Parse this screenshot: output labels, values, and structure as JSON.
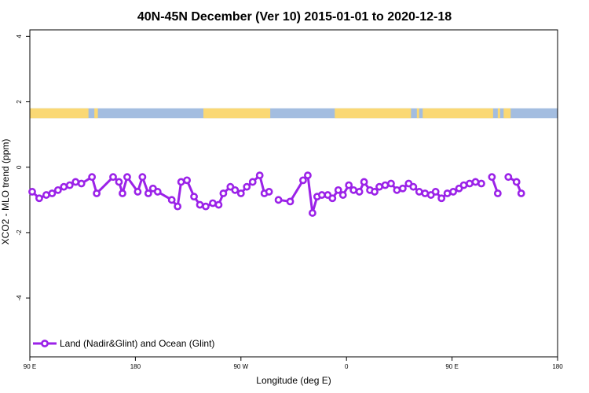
{
  "chart_data": {
    "type": "line",
    "title": "40N-45N December (Ver 10)   2015-01-01 to 2020-12-18",
    "xlabel": "Longitude (deg E)",
    "ylabel": "XCO2 - MLO trend (ppm)",
    "xlim": [
      90,
      540
    ],
    "ylim": [
      -5.8,
      4.2
    ],
    "x_ticks": [
      {
        "value": 90,
        "label": "90 E"
      },
      {
        "value": 180,
        "label": "180"
      },
      {
        "value": 270,
        "label": "90 W"
      },
      {
        "value": 360,
        "label": "0"
      },
      {
        "value": 450,
        "label": "90 E"
      },
      {
        "value": 540,
        "label": "180"
      }
    ],
    "y_ticks": [
      {
        "value": 4,
        "label": "4"
      },
      {
        "value": 2,
        "label": "2"
      },
      {
        "value": 0,
        "label": "0"
      },
      {
        "value": -2,
        "label": "-2"
      },
      {
        "value": -4,
        "label": "-4"
      }
    ],
    "land_ocean_strip": {
      "y_range": [
        1.5,
        1.8
      ],
      "land_color": "#fad874",
      "ocean_color": "#a3bde0",
      "land_segments": [
        [
          90,
          140
        ],
        [
          145,
          148
        ],
        [
          238,
          295
        ],
        [
          350,
          415
        ],
        [
          420,
          422
        ],
        [
          425,
          485
        ],
        [
          489,
          491
        ],
        [
          494,
          500
        ]
      ]
    },
    "series": [
      {
        "name": "Land (Nadir&Glint) and Ocean (Glint)",
        "color": "#9b22e8",
        "x": [
          92,
          98,
          104,
          109,
          114,
          119,
          124,
          129,
          134,
          143,
          147,
          161,
          166,
          169,
          173,
          182,
          186,
          191,
          195,
          199,
          211,
          216,
          219,
          224,
          230,
          235,
          240,
          246,
          251,
          255,
          261,
          265,
          270,
          275,
          280,
          286,
          290,
          294,
          298,
          302,
          312,
          323,
          327,
          331,
          335,
          339,
          344,
          348,
          353,
          357,
          362,
          366,
          371,
          375,
          380,
          384,
          388,
          393,
          398,
          403,
          408,
          413,
          417,
          422,
          427,
          432,
          436,
          441,
          446,
          451,
          456,
          460,
          465,
          470,
          475,
          480,
          484,
          489,
          493,
          498,
          505,
          509,
          521,
          525,
          529
        ],
        "values": [
          -0.75,
          -0.95,
          -0.85,
          -0.8,
          -0.7,
          -0.6,
          -0.55,
          -0.45,
          -0.5,
          -0.3,
          -0.8,
          -0.3,
          -0.45,
          -0.8,
          -0.3,
          -0.75,
          -0.3,
          -0.8,
          -0.65,
          -0.75,
          -1.0,
          -1.2,
          -0.45,
          -0.4,
          -0.9,
          -1.15,
          -1.2,
          -1.1,
          -1.15,
          -0.8,
          -0.6,
          -0.7,
          -0.8,
          -0.6,
          -0.45,
          -0.25,
          -0.8,
          -0.75,
          null,
          -1.0,
          -1.05,
          -0.4,
          -0.25,
          -1.4,
          -0.9,
          -0.85,
          -0.85,
          -0.95,
          -0.7,
          -0.85,
          -0.55,
          -0.7,
          -0.75,
          -0.45,
          -0.7,
          -0.75,
          -0.6,
          -0.55,
          -0.5,
          -0.7,
          -0.65,
          -0.5,
          -0.6,
          -0.75,
          -0.8,
          -0.85,
          -0.75,
          -0.95,
          -0.8,
          -0.75,
          -0.65,
          -0.55,
          -0.5,
          -0.45,
          -0.5,
          null,
          -0.3,
          -0.8,
          null,
          -0.3,
          -0.45,
          -0.8,
          null,
          null,
          null
        ]
      }
    ],
    "legend": {
      "position": "bottom-left",
      "label": "Land (Nadir&Glint) and Ocean (Glint)"
    }
  }
}
